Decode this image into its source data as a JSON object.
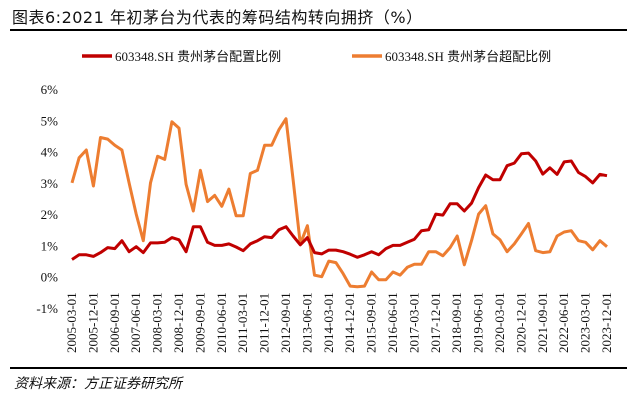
{
  "title": "图表6:2021 年初茅台为代表的筹码结构转向拥挤（%）",
  "source": "资料来源：方正证券研究所",
  "chart_data": {
    "type": "line",
    "title": "图表6:2021 年初茅台为代表的筹码结构转向拥挤（%）",
    "xlabel": "",
    "ylabel": "",
    "ylim": [
      -1,
      6
    ],
    "yticks": [
      -1,
      0,
      1,
      2,
      3,
      4,
      5,
      6
    ],
    "ytick_labels": [
      "-1%",
      "0%",
      "1%",
      "2%",
      "3%",
      "4%",
      "5%",
      "6%"
    ],
    "grid": false,
    "legend_position": "top",
    "x": [
      "2005-03-01",
      "2005-06-01",
      "2005-09-01",
      "2005-12-01",
      "2006-03-01",
      "2006-06-01",
      "2006-09-01",
      "2006-12-01",
      "2007-03-01",
      "2007-06-01",
      "2007-09-01",
      "2007-12-01",
      "2008-03-01",
      "2008-06-01",
      "2008-09-01",
      "2008-12-01",
      "2009-03-01",
      "2009-06-01",
      "2009-09-01",
      "2009-12-01",
      "2010-03-01",
      "2010-06-01",
      "2010-09-01",
      "2010-12-01",
      "2011-03-01",
      "2011-06-01",
      "2011-09-01",
      "2011-12-01",
      "2012-03-01",
      "2012-06-01",
      "2012-09-01",
      "2012-12-01",
      "2013-03-01",
      "2013-06-01",
      "2013-09-01",
      "2013-12-01",
      "2014-03-01",
      "2014-06-01",
      "2014-09-01",
      "2014-12-01",
      "2015-03-01",
      "2015-06-01",
      "2015-09-01",
      "2015-12-01",
      "2016-03-01",
      "2016-06-01",
      "2016-09-01",
      "2016-12-01",
      "2017-03-01",
      "2017-06-01",
      "2017-09-01",
      "2017-12-01",
      "2018-03-01",
      "2018-06-01",
      "2018-09-01",
      "2018-12-01",
      "2019-03-01",
      "2019-06-01",
      "2019-09-01",
      "2019-12-01",
      "2020-03-01",
      "2020-06-01",
      "2020-09-01",
      "2020-12-01",
      "2021-03-01",
      "2021-06-01",
      "2021-09-01",
      "2021-12-01",
      "2022-03-01",
      "2022-06-01",
      "2022-09-01",
      "2022-12-01",
      "2023-03-01",
      "2023-06-01",
      "2023-09-01",
      "2023-12-01"
    ],
    "xtick_labels": [
      "2005-03-01",
      "2005-12-01",
      "2006-09-01",
      "2007-06-01",
      "2008-03-01",
      "2008-12-01",
      "2009-09-01",
      "2010-06-01",
      "2011-03-01",
      "2011-12-01",
      "2012-09-01",
      "2013-06-01",
      "2014-03-01",
      "2014-12-01",
      "2015-09-01",
      "2016-06-01",
      "2017-03-01",
      "2017-12-01",
      "2018-09-01",
      "2019-06-01",
      "2020-03-01",
      "2020-12-01",
      "2021-09-01",
      "2022-06-01",
      "2023-03-01",
      "2023-12-01"
    ],
    "series": [
      {
        "name": "603348.SH 贵州茅台配置比例",
        "color": "#C00000",
        "values": [
          0.55,
          0.7,
          0.7,
          0.65,
          0.77,
          0.93,
          0.9,
          1.15,
          0.8,
          0.96,
          0.77,
          1.08,
          1.08,
          1.1,
          1.25,
          1.18,
          0.8,
          1.6,
          1.6,
          1.1,
          1.0,
          1.0,
          1.05,
          0.95,
          0.83,
          1.05,
          1.15,
          1.28,
          1.25,
          1.5,
          1.6,
          1.3,
          1.02,
          1.25,
          0.77,
          0.73,
          0.85,
          0.85,
          0.8,
          0.72,
          0.62,
          0.7,
          0.8,
          0.7,
          0.9,
          1.0,
          1.0,
          1.1,
          1.2,
          1.47,
          1.5,
          2.0,
          1.97,
          2.33,
          2.33,
          2.1,
          2.35,
          2.85,
          3.25,
          3.1,
          3.1,
          3.55,
          3.63,
          3.93,
          3.95,
          3.7,
          3.28,
          3.48,
          3.27,
          3.67,
          3.7,
          3.33,
          3.2,
          3.0,
          3.27,
          3.23
        ]
      },
      {
        "name": "603348.SH 贵州茅台超配比例",
        "color": "#ED7D31",
        "values": [
          3.0,
          3.8,
          4.05,
          2.9,
          4.45,
          4.4,
          4.2,
          4.05,
          3.0,
          2.0,
          1.15,
          3.0,
          3.85,
          3.75,
          4.95,
          4.75,
          2.95,
          2.1,
          3.4,
          2.4,
          2.6,
          2.25,
          2.8,
          1.95,
          1.95,
          3.3,
          3.4,
          4.2,
          4.2,
          4.7,
          5.05,
          3.1,
          1.05,
          1.63,
          0.05,
          0.0,
          0.5,
          0.45,
          0.1,
          -0.3,
          -0.32,
          -0.3,
          0.15,
          -0.1,
          -0.1,
          0.15,
          0.05,
          0.3,
          0.4,
          0.4,
          0.8,
          0.8,
          0.67,
          0.93,
          1.3,
          0.38,
          1.15,
          2.0,
          2.27,
          1.37,
          1.18,
          0.8,
          1.05,
          1.37,
          1.7,
          0.83,
          0.77,
          0.8,
          1.3,
          1.43,
          1.47,
          1.15,
          1.1,
          0.86,
          1.15,
          0.96
        ]
      }
    ]
  }
}
